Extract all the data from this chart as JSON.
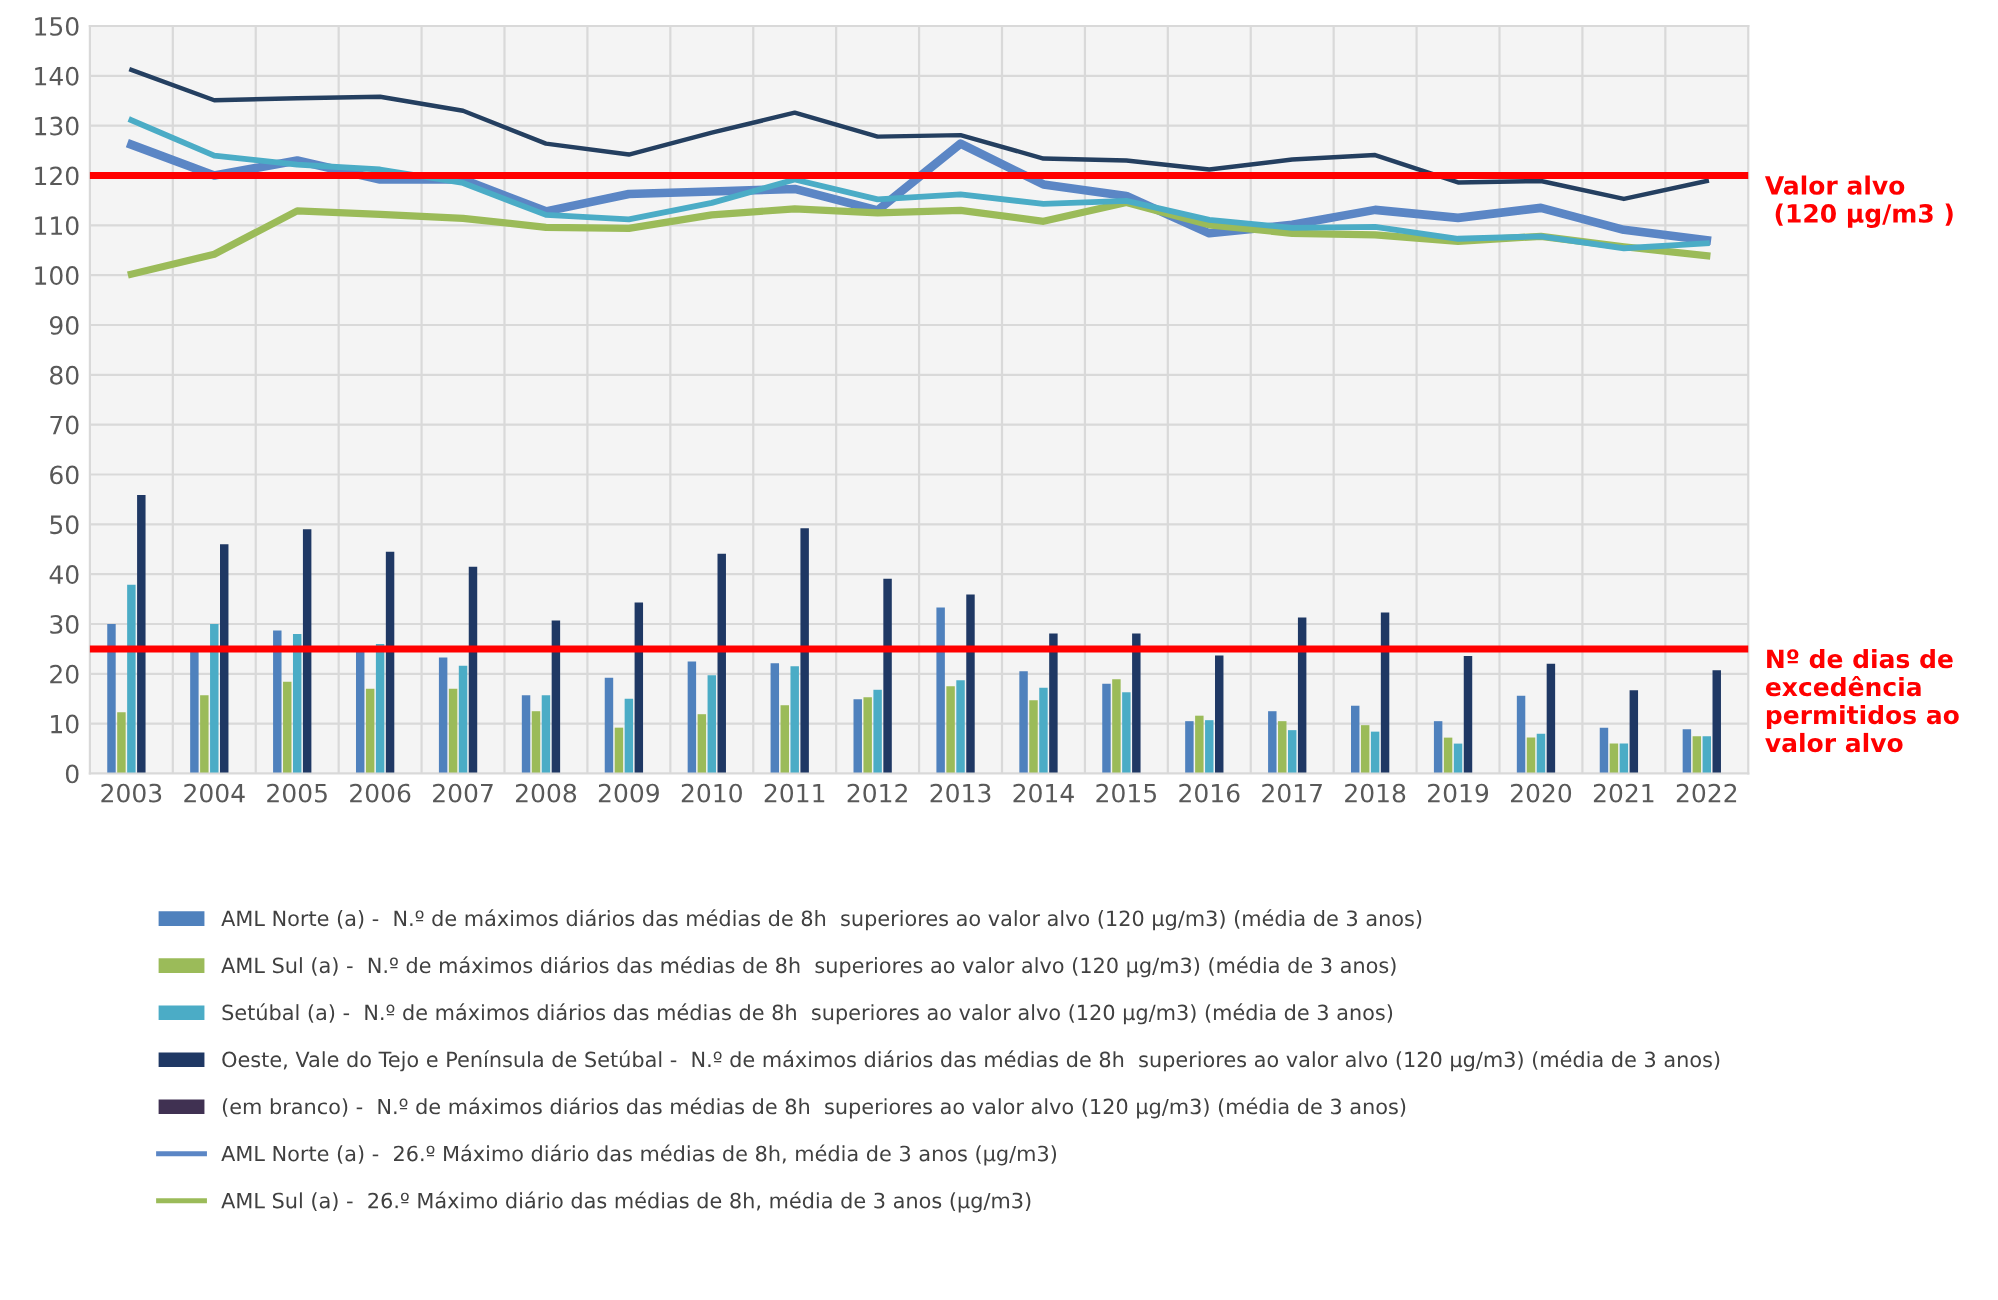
{
  "chart_data": {
    "type": "bar",
    "categories": [
      "2003",
      "2004",
      "2005",
      "2006",
      "2007",
      "2008",
      "2009",
      "2010",
      "2011",
      "2012",
      "2013",
      "2014",
      "2015",
      "2016",
      "2017",
      "2018",
      "2019",
      "2020",
      "2021",
      "2022"
    ],
    "series": [
      {
        "name": "AML Norte (a) -  N.º de máximos diários das médias de 8h  superiores ao valor alvo (120 µg/m3) (média de 3 anos)",
        "color": "#4f81bd",
        "values": [
          30,
          25,
          28.7,
          25,
          23.3,
          15.7,
          19.2,
          22.5,
          22.1,
          14.9,
          33.3,
          20.5,
          18,
          10.5,
          12.5,
          13.6,
          10.5,
          15.6,
          9.2,
          8.9
        ]
      },
      {
        "name": "AML Sul (a) -  N.º de máximos diários das médias de 8h  superiores ao valor alvo (120 µg/m3) (média de 3 anos)",
        "color": "#9bbb59",
        "values": [
          12.3,
          15.7,
          18.4,
          17,
          17,
          12.5,
          9.2,
          11.9,
          13.7,
          15.3,
          17.5,
          14.7,
          18.9,
          11.6,
          10.5,
          9.7,
          7.2,
          7.2,
          6,
          7.5
        ]
      },
      {
        "name": "Setúbal (a) -  N.º de máximos diários das médias de 8h  superiores ao valor alvo (120 µg/m3) (média de 3 anos)",
        "color": "#4bacc6",
        "values": [
          37.9,
          30,
          28,
          26,
          21.6,
          15.7,
          15,
          19.7,
          21.5,
          16.8,
          18.7,
          17.2,
          16.3,
          10.7,
          8.7,
          8.4,
          6,
          8,
          6,
          7.5
        ]
      },
      {
        "name": "Oeste, Vale do Tejo e Península de Setúbal -  N.º de máximos diários das médias de 8h  superiores ao valor alvo (120 µg/m3) (média de 3 anos)",
        "color": "#1f3864",
        "values": [
          55.9,
          46,
          49,
          44.5,
          41.5,
          30.7,
          34.3,
          44.1,
          49.2,
          39.1,
          35.9,
          28.1,
          28.1,
          23.7,
          31.3,
          32.3,
          23.6,
          22,
          16.7,
          20.7
        ]
      },
      {
        "name": "(em branco) -  N.º de máximos diários das médias de 8h  superiores ao valor alvo (120 µg/m3) (média de 3 anos)",
        "color": "#403152",
        "values": [
          null,
          null,
          null,
          null,
          null,
          null,
          null,
          null,
          null,
          null,
          null,
          null,
          null,
          null,
          null,
          null,
          null,
          null,
          null,
          null
        ]
      },
      {
        "type": "line",
        "name": "AML Norte (a) -  26.º Máximo diário das médias de 8h, média de 3 anos (µg/m3)",
        "color": "#5b86c5",
        "values": [
          126.2,
          120,
          123,
          119.2,
          119.2,
          112.8,
          116.3,
          116.8,
          117.3,
          113,
          126.4,
          118.2,
          115.9,
          108.4,
          110.1,
          113.1,
          111.5,
          113.5,
          109.1,
          107
        ]
      },
      {
        "type": "line",
        "name": "AML Sul (a) -  26.º Máximo diário das médias de 8h, média de 3 anos (µg/m3)",
        "color": "#9bbb59",
        "values": [
          100.2,
          104.2,
          112.9,
          112.2,
          111.4,
          109.6,
          109.4,
          112.1,
          113.3,
          112.5,
          113,
          110.8,
          114.6,
          110.1,
          108.4,
          108.1,
          106.8,
          107.8,
          105.7,
          103.9
        ]
      },
      {
        "type": "line",
        "color": "#4bacc6",
        "values": [
          131.1,
          124,
          122.2,
          121.2,
          118.5,
          112.1,
          111.2,
          114.5,
          119.2,
          115.2,
          116.2,
          114.3,
          114.9,
          111.1,
          109.5,
          109.7,
          107.3,
          107.8,
          105.4,
          106.4
        ]
      },
      {
        "type": "line",
        "color": "#243f60",
        "values": [
          141.2,
          135.1,
          135.5,
          135.8,
          133,
          126.4,
          124.2,
          128.6,
          132.6,
          127.8,
          128.1,
          123.4,
          123,
          121.2,
          123.2,
          124.1,
          118.6,
          118.9,
          115.3,
          118.9
        ]
      }
    ],
    "ylim": [
      0,
      150
    ],
    "yticks": [
      0,
      10,
      20,
      30,
      40,
      50,
      60,
      70,
      80,
      90,
      100,
      110,
      120,
      130,
      140,
      150
    ],
    "ref_lines": [
      {
        "axis": "y",
        "value": 120,
        "label": "Valor alvo\n (120 µg/m3 )",
        "color": "#ff0000"
      },
      {
        "axis": "y",
        "value": 25,
        "label": "Nº de dias de\nexcedência\npermitidos ao\nvalor alvo",
        "color": "#ff0000"
      }
    ],
    "grid": true,
    "legend": "bottom"
  }
}
